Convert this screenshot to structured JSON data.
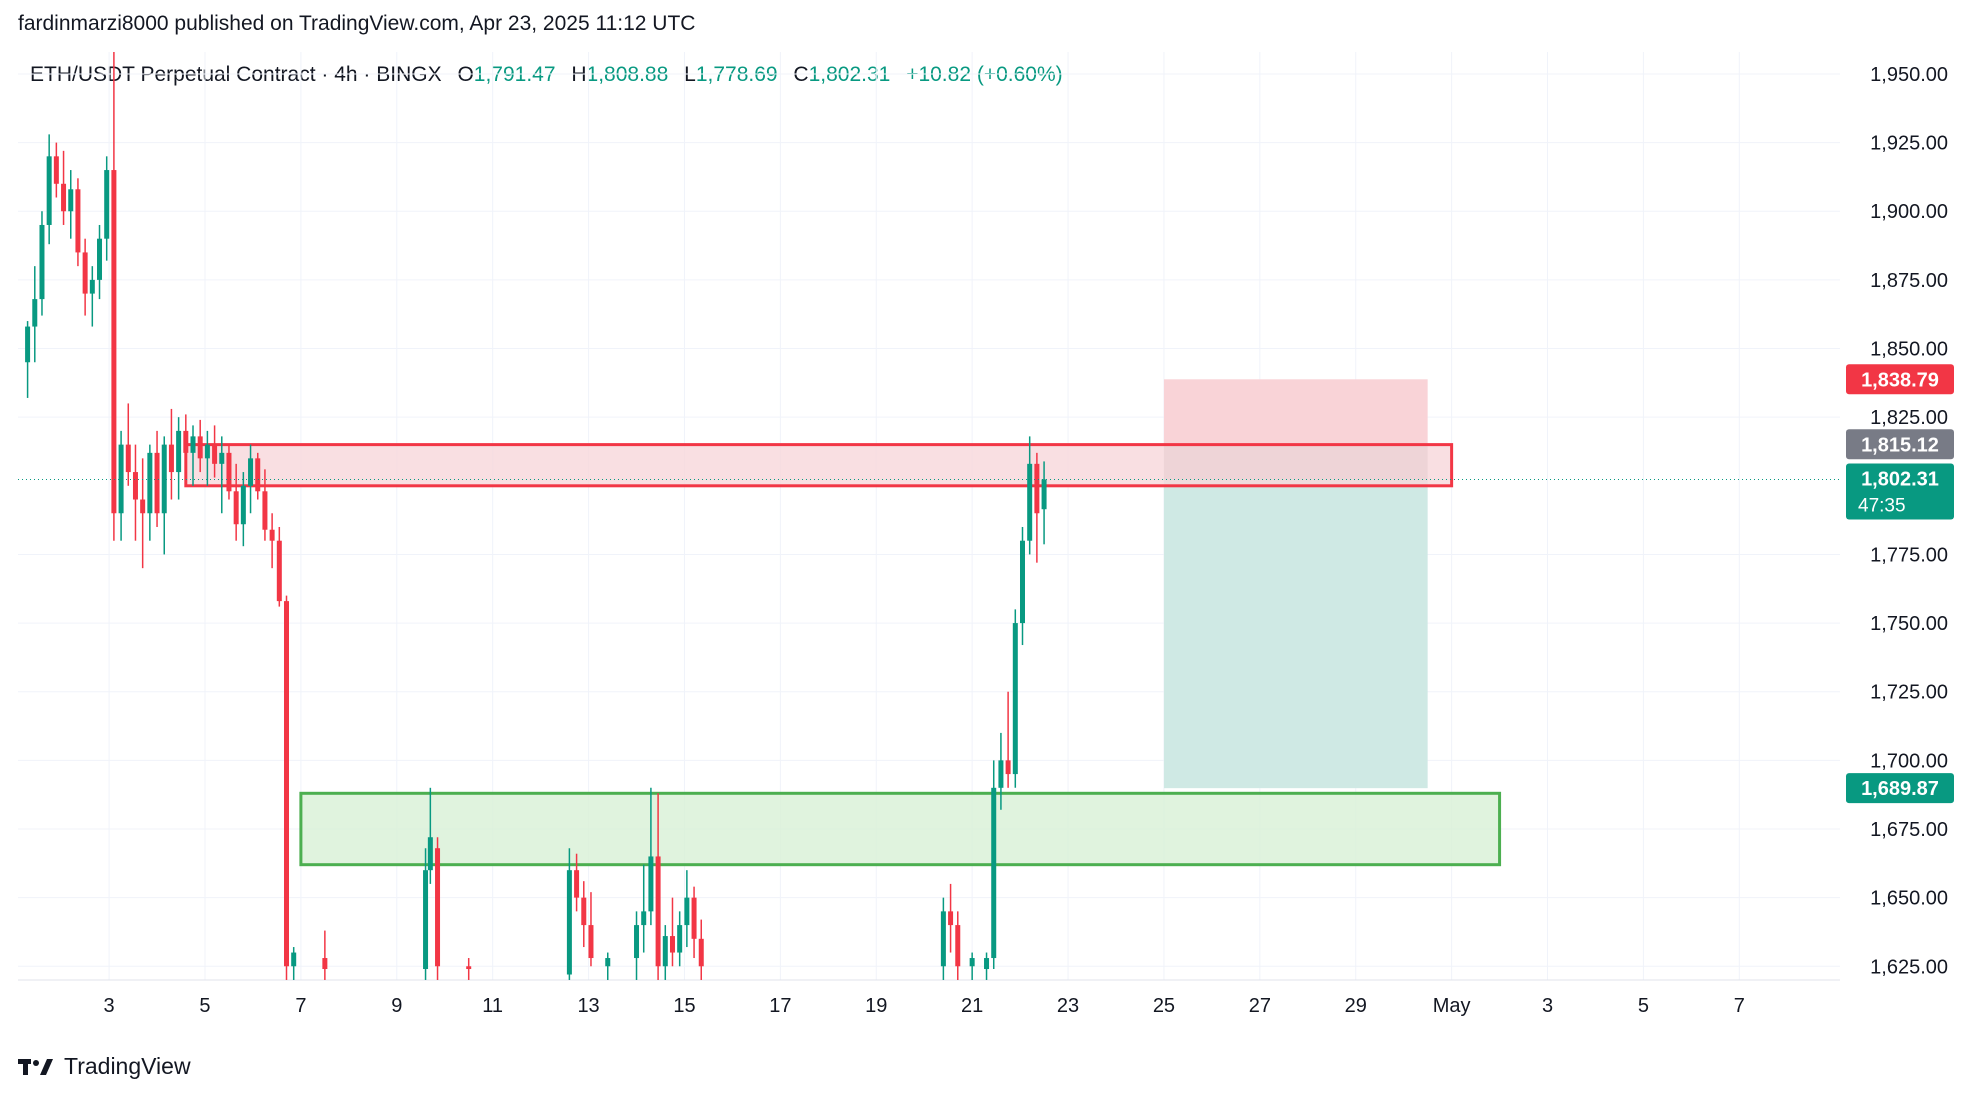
{
  "header": {
    "published": "fardinmarzi8000 published on TradingView.com, Apr 23, 2025 11:12 UTC"
  },
  "legend": {
    "symbol": "ETH/USDT Perpetual Contract · 4h · BINGX",
    "o_label": "O",
    "o_value": "1,791.47",
    "h_label": "H",
    "h_value": "1,808.88",
    "l_label": "L",
    "l_value": "1,778.69",
    "c_label": "C",
    "c_value": "1,802.31",
    "change": "+10.82 (+0.60%)"
  },
  "brand": {
    "name": "TradingView",
    "logo_icon": "tradingview-logo-icon"
  },
  "colors": {
    "up": "#089981",
    "down": "#f23645",
    "grid": "#f0f3fa",
    "resistance_fill": "#f8d7db",
    "resistance_border": "#f23645",
    "support_fill": "#d8f0d6",
    "support_border": "#4caf50",
    "stop_zone": "#f9d3d7",
    "target_zone": "#cfe9e4",
    "entry_zone": "#c9c9c9"
  },
  "chart_data": {
    "type": "candlestick",
    "y_range": [
      1620,
      1958
    ],
    "y_ticks": [
      "1,950.00",
      "1,925.00",
      "1,900.00",
      "1,875.00",
      "1,850.00",
      "1,825.00",
      "1,775.00",
      "1,750.00",
      "1,725.00",
      "1,700.00",
      "1,675.00",
      "1,650.00",
      "1,625.00"
    ],
    "y_tick_values": [
      1950,
      1925,
      1900,
      1875,
      1850,
      1825,
      1775,
      1750,
      1725,
      1700,
      1675,
      1650,
      1625
    ],
    "x_ticks": [
      "3",
      "5",
      "7",
      "9",
      "11",
      "13",
      "15",
      "17",
      "19",
      "21",
      "23",
      "25",
      "27",
      "29",
      "May",
      "3",
      "5",
      "7"
    ],
    "x_tick_days": [
      3,
      5,
      7,
      9,
      11,
      13,
      15,
      17,
      19,
      21,
      23,
      25,
      27,
      29,
      31,
      33,
      35,
      37
    ],
    "x_range_days": [
      1.1,
      39.1
    ],
    "price_tags": [
      {
        "label": "1,838.79",
        "value": 1838.79,
        "color": "#f23645"
      },
      {
        "label": "1,815.12",
        "value": 1815.12,
        "color": "#787b86"
      },
      {
        "label": "1,802.31",
        "sub": "47:35",
        "value": 1802.31,
        "color": "#089981"
      },
      {
        "label": "1,689.87",
        "value": 1689.87,
        "color": "#089981"
      }
    ],
    "current_price": 1802.31,
    "zones": [
      {
        "name": "resistance",
        "day_start": 4.6,
        "day_end": 31.0,
        "low": 1800,
        "high": 1815
      },
      {
        "name": "support",
        "day_start": 7.0,
        "day_end": 32.0,
        "low": 1662,
        "high": 1688
      }
    ],
    "position": {
      "day_start": 25.0,
      "day_end": 30.5,
      "stop": 1838.79,
      "entry": 1815.12,
      "target": 1689.87
    },
    "candles": [
      [
        1.3,
        1845,
        1860,
        1832,
        1858
      ],
      [
        1.45,
        1858,
        1880,
        1845,
        1868
      ],
      [
        1.6,
        1868,
        1900,
        1862,
        1895
      ],
      [
        1.75,
        1895,
        1928,
        1888,
        1920
      ],
      [
        1.9,
        1920,
        1925,
        1905,
        1910
      ],
      [
        2.05,
        1910,
        1922,
        1895,
        1900
      ],
      [
        2.2,
        1900,
        1915,
        1890,
        1908
      ],
      [
        2.35,
        1908,
        1912,
        1880,
        1885
      ],
      [
        2.5,
        1885,
        1890,
        1862,
        1870
      ],
      [
        2.65,
        1870,
        1880,
        1858,
        1875
      ],
      [
        2.8,
        1875,
        1895,
        1868,
        1890
      ],
      [
        2.95,
        1890,
        1920,
        1882,
        1915
      ],
      [
        3.1,
        1915,
        1960,
        1780,
        1790
      ],
      [
        3.25,
        1790,
        1820,
        1780,
        1815
      ],
      [
        3.4,
        1815,
        1830,
        1800,
        1805
      ],
      [
        3.55,
        1805,
        1815,
        1780,
        1795
      ],
      [
        3.7,
        1795,
        1810,
        1770,
        1790
      ],
      [
        3.85,
        1790,
        1815,
        1780,
        1812
      ],
      [
        4.0,
        1812,
        1820,
        1785,
        1790
      ],
      [
        4.15,
        1790,
        1818,
        1775,
        1815
      ],
      [
        4.3,
        1815,
        1828,
        1795,
        1805
      ],
      [
        4.45,
        1805,
        1825,
        1795,
        1820
      ],
      [
        4.6,
        1820,
        1826,
        1808,
        1812
      ],
      [
        4.75,
        1812,
        1822,
        1800,
        1818
      ],
      [
        4.9,
        1818,
        1824,
        1805,
        1810
      ],
      [
        5.05,
        1810,
        1820,
        1800,
        1815
      ],
      [
        5.2,
        1815,
        1822,
        1803,
        1808
      ],
      [
        5.35,
        1808,
        1818,
        1790,
        1812
      ],
      [
        5.5,
        1812,
        1815,
        1795,
        1798
      ],
      [
        5.65,
        1798,
        1808,
        1780,
        1786
      ],
      [
        5.8,
        1786,
        1805,
        1778,
        1800
      ],
      [
        5.95,
        1800,
        1815,
        1790,
        1810
      ],
      [
        6.1,
        1810,
        1812,
        1795,
        1798
      ],
      [
        6.25,
        1798,
        1806,
        1780,
        1784
      ],
      [
        6.4,
        1784,
        1790,
        1770,
        1780
      ],
      [
        6.55,
        1780,
        1785,
        1756,
        1758
      ],
      [
        6.7,
        1758,
        1760,
        1620,
        1625
      ],
      [
        6.85,
        1625,
        1632,
        1618,
        1630
      ],
      [
        7.5,
        1628,
        1638,
        1620,
        1624
      ],
      [
        9.6,
        1624,
        1668,
        1618,
        1660
      ],
      [
        9.7,
        1660,
        1690,
        1655,
        1672
      ],
      [
        9.85,
        1668,
        1672,
        1620,
        1625
      ],
      [
        10.5,
        1625,
        1628,
        1620,
        1624
      ],
      [
        12.6,
        1622,
        1668,
        1618,
        1660
      ],
      [
        12.75,
        1660,
        1666,
        1645,
        1650
      ],
      [
        12.9,
        1650,
        1656,
        1632,
        1640
      ],
      [
        13.05,
        1640,
        1652,
        1625,
        1628
      ],
      [
        13.4,
        1625,
        1630,
        1620,
        1628
      ],
      [
        14.0,
        1628,
        1645,
        1620,
        1640
      ],
      [
        14.15,
        1640,
        1662,
        1630,
        1645
      ],
      [
        14.3,
        1645,
        1690,
        1640,
        1665
      ],
      [
        14.45,
        1665,
        1688,
        1620,
        1625
      ],
      [
        14.6,
        1625,
        1640,
        1620,
        1636
      ],
      [
        14.75,
        1636,
        1650,
        1625,
        1630
      ],
      [
        14.9,
        1630,
        1645,
        1625,
        1640
      ],
      [
        15.05,
        1640,
        1660,
        1632,
        1650
      ],
      [
        15.2,
        1650,
        1654,
        1628,
        1635
      ],
      [
        15.35,
        1635,
        1642,
        1620,
        1625
      ],
      [
        20.4,
        1625,
        1650,
        1620,
        1645
      ],
      [
        20.55,
        1645,
        1655,
        1630,
        1640
      ],
      [
        20.7,
        1640,
        1645,
        1620,
        1625
      ],
      [
        21.0,
        1625,
        1630,
        1620,
        1628
      ],
      [
        21.3,
        1624,
        1630,
        1620,
        1628
      ],
      [
        21.45,
        1628,
        1700,
        1624,
        1690
      ],
      [
        21.6,
        1690,
        1710,
        1682,
        1700
      ],
      [
        21.75,
        1700,
        1725,
        1690,
        1695
      ],
      [
        21.9,
        1695,
        1755,
        1690,
        1750
      ],
      [
        22.05,
        1750,
        1785,
        1742,
        1780
      ],
      [
        22.2,
        1780,
        1818,
        1775,
        1808
      ],
      [
        22.35,
        1808,
        1812,
        1772,
        1790
      ],
      [
        22.5,
        1791.47,
        1808.88,
        1778.69,
        1802.31
      ]
    ]
  }
}
